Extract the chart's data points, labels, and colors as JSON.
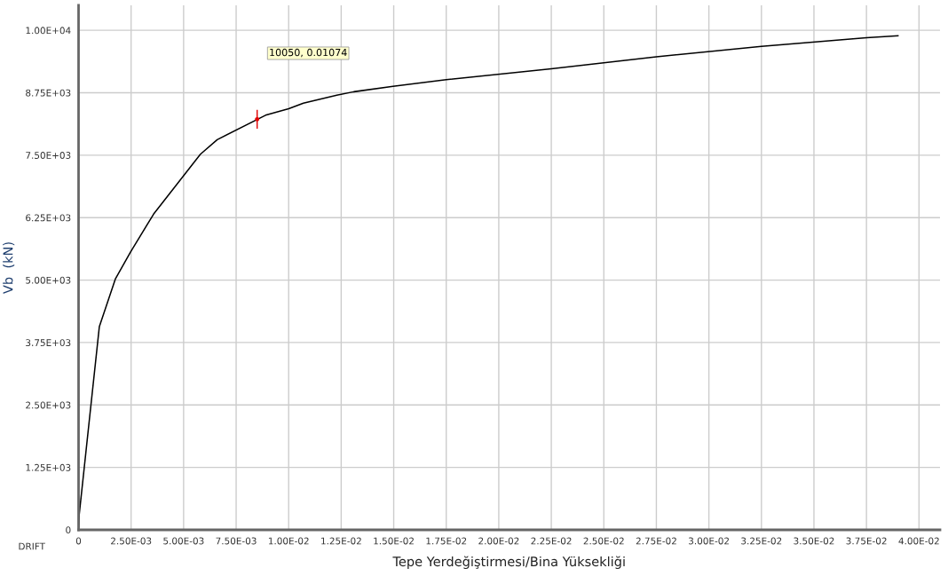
{
  "chart_data": {
    "type": "line",
    "xlabel": "Tepe Yerdeğiştirmesi/Bina Yüksekliği",
    "ylabel": "Vb  (kN)",
    "x": [
      0,
      3e-05,
      0.00099,
      0.00175,
      0.00247,
      0.00357,
      0.0058,
      0.0066,
      0.0089,
      0.01,
      0.0107,
      0.01229,
      0.0131,
      0.01497,
      0.0175,
      0.0225,
      0.0275,
      0.0325,
      0.0375,
      0.039
    ],
    "series": [
      {
        "color": "#000000",
        "values": [
          0,
          300,
          4070,
          5020,
          5560,
          6320,
          7520,
          7810,
          8300,
          8430,
          8540,
          8700,
          8770,
          8880,
          9010,
          9230,
          9470,
          9680,
          9850,
          9890
        ]
      },
      {
        "type": "scatter",
        "color": "#e00000",
        "x": [
          0.0085
        ],
        "values": [
          8220
        ],
        "errors": [
          190
        ],
        "marker": "circle"
      }
    ],
    "xlim": [
      0,
      0.041
    ],
    "ylim": [
      0,
      10500
    ],
    "xticks": [
      0,
      {
        "value": 0.0025,
        "label": "2.50E-03"
      },
      {
        "value": 0.005,
        "label": "5.00E-03"
      },
      {
        "value": 0.0075,
        "label": "7.50E-03"
      },
      {
        "value": 0.01,
        "label": "1.00E-02"
      },
      {
        "value": 0.0125,
        "label": "1.25E-02"
      },
      {
        "value": 0.015,
        "label": "1.50E-02"
      },
      {
        "value": 0.0175,
        "label": "1.75E-02"
      },
      {
        "value": 0.02,
        "label": "2.00E-02"
      },
      {
        "value": 0.0225,
        "label": "2.25E-02"
      },
      {
        "value": 0.025,
        "label": "2.50E-02"
      },
      {
        "value": 0.0275,
        "label": "2.75E-02"
      },
      {
        "value": 0.03,
        "label": "3.00E-02"
      },
      {
        "value": 0.0325,
        "label": "3.25E-02"
      },
      {
        "value": 0.035,
        "label": "3.50E-02"
      },
      {
        "value": 0.0375,
        "label": "3.75E-02"
      },
      {
        "value": 0.04,
        "label": "4.00E-02"
      }
    ],
    "yticks": [
      0,
      {
        "value": 1250,
        "label": "1.25E+03"
      },
      {
        "value": 2500,
        "label": "2.50E+03"
      },
      {
        "value": 3750,
        "label": "3.75E+03"
      },
      {
        "value": 5000,
        "label": "5.00E+03"
      },
      {
        "value": 6250,
        "label": "6.25E+03"
      },
      {
        "value": 7500,
        "label": "7.50E+03"
      },
      {
        "value": 8750,
        "label": "8.75E+03"
      },
      {
        "value": 10000,
        "label": "1.00E+04"
      }
    ],
    "grid": true,
    "marker": "none",
    "line_style": "solid",
    "legend": false,
    "annotations": [
      "10050, 0.01074",
      "DRIFT"
    ]
  }
}
